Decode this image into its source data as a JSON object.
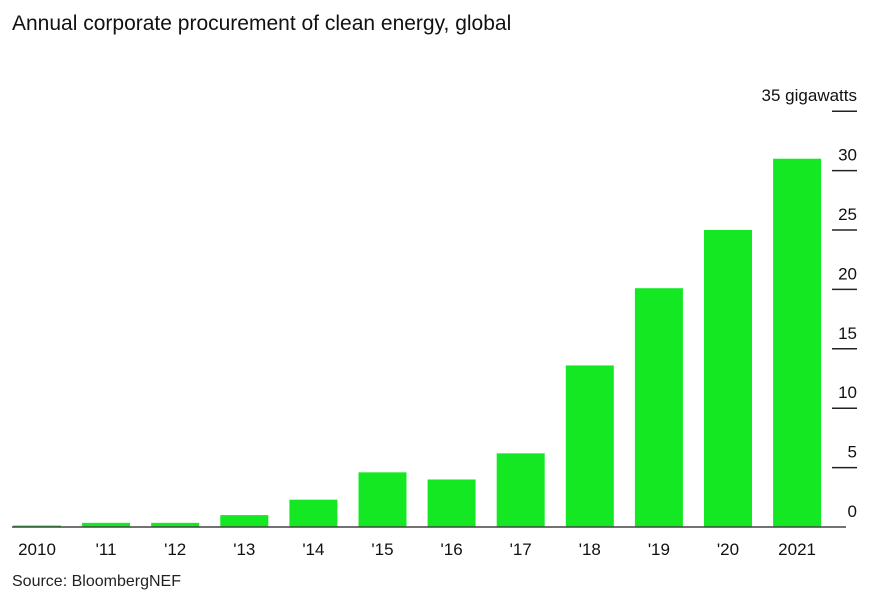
{
  "chart_data": {
    "type": "bar",
    "title": "Annual corporate procurement of clean energy, global",
    "source": "Source: BloombergNEF",
    "categories": [
      "2010",
      "'11",
      "'12",
      "'13",
      "'14",
      "'15",
      "'16",
      "'17",
      "'18",
      "'19",
      "'20",
      "2021"
    ],
    "values": [
      0.1,
      0.35,
      0.35,
      1.0,
      2.3,
      4.6,
      4.0,
      6.2,
      13.6,
      20.1,
      25.0,
      31.0
    ],
    "ylabel": "gigawatts",
    "ylim": [
      0,
      35
    ],
    "yticks": [
      0,
      5,
      10,
      15,
      20,
      25,
      30,
      35
    ],
    "ytick_labels": [
      "0",
      "5",
      "10",
      "15",
      "20",
      "25",
      "30",
      "35 gigawatts"
    ],
    "y_axis_position": "right",
    "grid": false,
    "bar_color": "#13e823"
  }
}
